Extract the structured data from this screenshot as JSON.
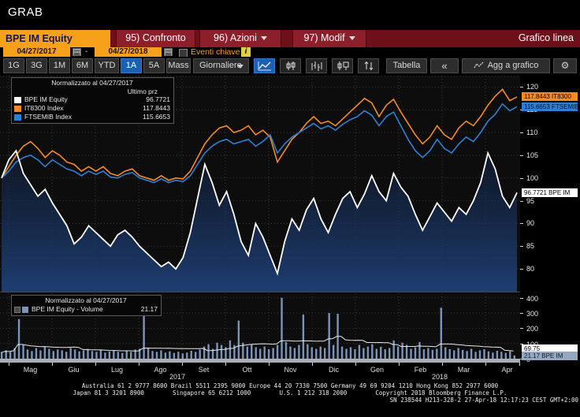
{
  "window": {
    "title": "GRAB"
  },
  "menu_bar": {
    "security": "BPE IM Equity",
    "buttons": [
      {
        "label": "95) Confronto",
        "has_dropdown": false
      },
      {
        "label": "96) Azioni",
        "has_dropdown": true
      },
      {
        "label": "97) Modif",
        "has_dropdown": true
      }
    ],
    "view_title": "Grafico linea"
  },
  "date_bar": {
    "start_date": "04/27/2017",
    "separator": "-",
    "end_date": "04/27/2018",
    "events_label": "Eventi chiave",
    "info_badge": "i"
  },
  "period_bar": {
    "ranges": [
      "1G",
      "3G",
      "1M",
      "6M",
      "YTD",
      "1A",
      "5A",
      "Mass"
    ],
    "selected_range": "1A",
    "frequency": "Giornaliero",
    "table_label": "Tabella",
    "collapse_label": "«",
    "add_chart_label": "Agg a grafico",
    "gear_glyph": "⚙",
    "chart_type_icons": [
      "line-chart",
      "candlestick",
      "ohlc-bars",
      "candle-volume",
      "arrows-updown"
    ],
    "selected_icon": "line-chart"
  },
  "chart_data": {
    "type": "line",
    "title": "Normalizzato al 04/27/2017",
    "legend_header": "Ultimo prz",
    "series": [
      {
        "name": "BPE IM Equity",
        "last": "96.7721",
        "color": "#ffffff",
        "values": [
          100,
          104,
          106,
          101,
          98.5,
          96,
          97.5,
          94.5,
          92,
          89.5,
          85.5,
          87,
          89.5,
          88,
          86.5,
          85,
          87.5,
          88.5,
          87,
          85,
          83.5,
          82,
          80.5,
          81.5,
          80,
          82.5,
          88,
          95.5,
          103,
          99,
          94,
          97,
          92,
          86,
          83,
          90,
          87,
          83,
          79,
          86,
          91,
          88.5,
          93,
          95.5,
          91,
          88,
          92,
          95.5,
          97,
          93.5,
          96.5,
          100.5,
          97,
          95,
          101,
          98,
          96,
          92,
          88.5,
          91.5,
          94.5,
          92.5,
          90.5,
          93.5,
          92,
          95,
          99,
          105.5,
          102,
          96,
          93.5,
          96.7721
        ]
      },
      {
        "name": "IT8300 Index",
        "last": "117.8443",
        "color": "#f78b20",
        "values": [
          100,
          102.5,
          105,
          107,
          108,
          106.5,
          104.5,
          106,
          105,
          103.5,
          103,
          101.5,
          102.5,
          101.5,
          102.5,
          101,
          100.5,
          101.5,
          102,
          100.5,
          100,
          99.5,
          100.5,
          99.5,
          100,
          99.8,
          101.5,
          104.5,
          107.5,
          109.5,
          111,
          111.5,
          110,
          110.5,
          111.5,
          109.5,
          110.5,
          109,
          103.5,
          106,
          108.5,
          110,
          112,
          113.5,
          112,
          112.5,
          111.5,
          113,
          114.5,
          116,
          117.5,
          116.5,
          113.5,
          116,
          117.3,
          114.5,
          112,
          109.5,
          107.5,
          109,
          111.5,
          109.5,
          108.5,
          111,
          112.5,
          111.5,
          113.5,
          116,
          118,
          119.5,
          117,
          117.8443
        ]
      },
      {
        "name": "FTSEMIB Index",
        "last": "115.6653",
        "color": "#2f80d5",
        "values": [
          100,
          101.5,
          103.5,
          104.5,
          105,
          104,
          102.5,
          104,
          103,
          102,
          101.5,
          100.5,
          101.5,
          100.8,
          101.5,
          100.2,
          100,
          100.8,
          101.2,
          100,
          99.5,
          99,
          99.8,
          99,
          99.5,
          99.2,
          100.5,
          103,
          105.5,
          107,
          108,
          108.5,
          107.5,
          108,
          108.5,
          107,
          108,
          109.5,
          105.5,
          107.5,
          109,
          110,
          111,
          112,
          110.8,
          111.5,
          110.5,
          111.8,
          112.8,
          113.5,
          114.8,
          113.8,
          111.5,
          113.5,
          114.5,
          111.5,
          108.5,
          106,
          104.5,
          106,
          108.5,
          106.5,
          105.5,
          107.5,
          109,
          108,
          110,
          112.5,
          114,
          116.3,
          114.8,
          115.6653
        ]
      }
    ],
    "y_axis": {
      "ticks": [
        120,
        115,
        110,
        105,
        100,
        95,
        90,
        85,
        80
      ],
      "min": 75,
      "max": 122.5
    },
    "y_badges": [
      {
        "label": "117.8443 IT8300",
        "value": 117.8443,
        "bg": "#f78b20",
        "fg": "#000000"
      },
      {
        "label": "115.6653 FTSEMIB",
        "value": 115.6653,
        "bg": "#2f80d5",
        "fg": "#00102a"
      },
      {
        "label": "96.7721  BPE IM",
        "value": 96.7721,
        "bg": "#ffffff",
        "fg": "#000000"
      }
    ],
    "x_axis": {
      "months": [
        "Mag",
        "Giu",
        "Lug",
        "Ago",
        "Set",
        "Ott",
        "Nov",
        "Dic",
        "Gen",
        "Feb",
        "Mar",
        "Apr"
      ],
      "years": [
        {
          "label": "2017",
          "position": 0.341
        },
        {
          "label": "2018",
          "position": 0.845
        }
      ]
    },
    "volume": {
      "title": "Normalizzato al 04/27/2017",
      "name": "BPE IM Equity - Volume",
      "last": "21.17",
      "color": "#7b94b9",
      "avg_color": "#e8e8e8",
      "ticks": [
        400,
        300,
        200,
        100,
        0
      ],
      "max": 430,
      "values": [
        40,
        55,
        45,
        70,
        260,
        90,
        60,
        50,
        70,
        55,
        80,
        65,
        50,
        60,
        55,
        45,
        70,
        60,
        48,
        55,
        65,
        50,
        45,
        60,
        40,
        48,
        55,
        45,
        38,
        50,
        45,
        60,
        65,
        310,
        70,
        50,
        45,
        55,
        40,
        48,
        38,
        45,
        34,
        40,
        52,
        45,
        60,
        80,
        95,
        65,
        105,
        90,
        75,
        120,
        90,
        250,
        105,
        80,
        95,
        75,
        65,
        80,
        62,
        70,
        90,
        400,
        110,
        80,
        70,
        90,
        290,
        95,
        75,
        65,
        80,
        70,
        300,
        90,
        295,
        80,
        65,
        75,
        62,
        90,
        70,
        80,
        95,
        65,
        78,
        62,
        70,
        120,
        80,
        105,
        90,
        65,
        75,
        110,
        62,
        70,
        58,
        65,
        335,
        75,
        62,
        55,
        70,
        58,
        50,
        65,
        45,
        55,
        62,
        48,
        40,
        52,
        45,
        38,
        48,
        21
      ],
      "badges": [
        {
          "label": "69.75",
          "value": 69.75,
          "bg": "#ffffff",
          "fg": "#000000"
        },
        {
          "label": "21.17 BPE IM",
          "value": 21.17,
          "bg": "#93a8c2",
          "fg": "#101820"
        }
      ]
    }
  },
  "status_bar": {
    "line1": "Australia 61 2 9777 8600 Brazil 5511 2395 9000 Europe 44 20 7330 7500 Germany 49 69 9204 1210 Hong Kong 852 2977 6000",
    "line2": "Japan 81 3 3201 8900        Singapore 65 6212 1000        U.S. 1 212 318 2000        Copyright 2018 Bloomberg Finance L.P.",
    "line3": "SN 238544 H213-328-2 27-Apr-18 12:17:23 CEST GMT+2:00"
  }
}
